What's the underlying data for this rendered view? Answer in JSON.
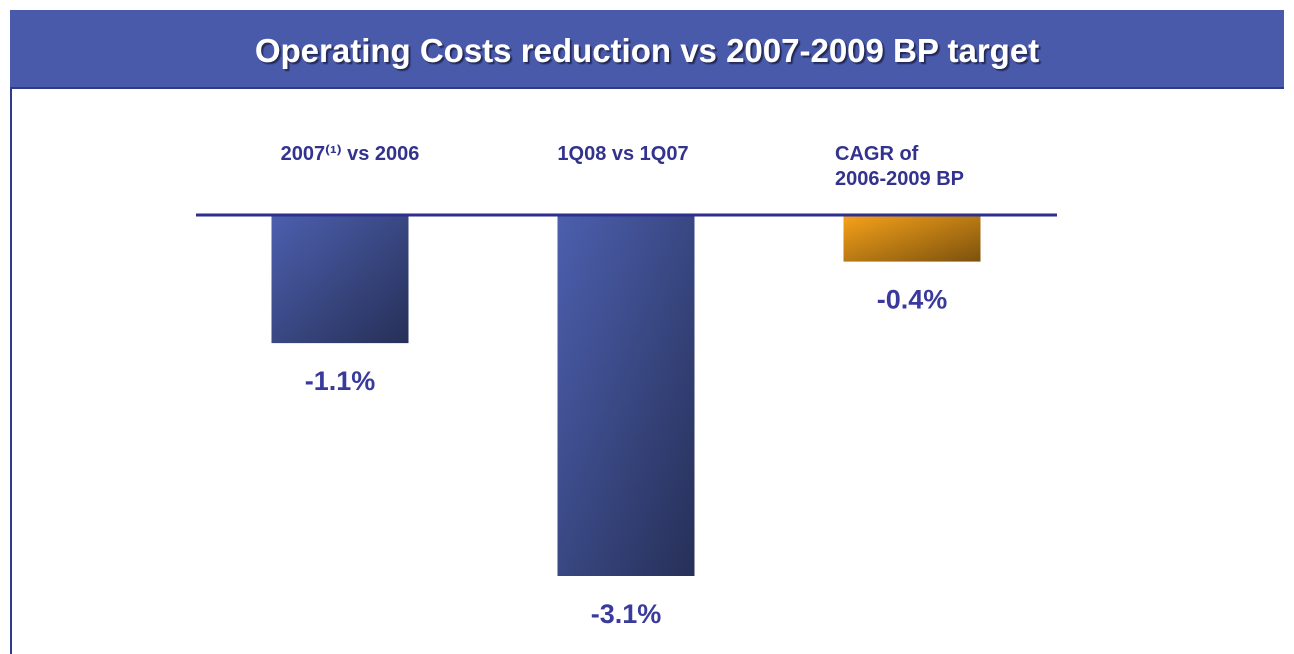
{
  "chart_data": {
    "type": "bar",
    "title": "Operating Costs reduction vs 2007-2009 BP target",
    "categories": [
      "2007⁽¹⁾ vs 2006",
      "1Q08 vs 1Q07",
      "CAGR of\n2006-2009 BP"
    ],
    "values": [
      -1.1,
      -3.1,
      -0.4
    ],
    "value_labels": [
      "-1.1%",
      "-3.1%",
      "-0.4%"
    ],
    "colors": [
      "#4c5fae",
      "#4c5fae",
      "#f7a21a"
    ]
  }
}
